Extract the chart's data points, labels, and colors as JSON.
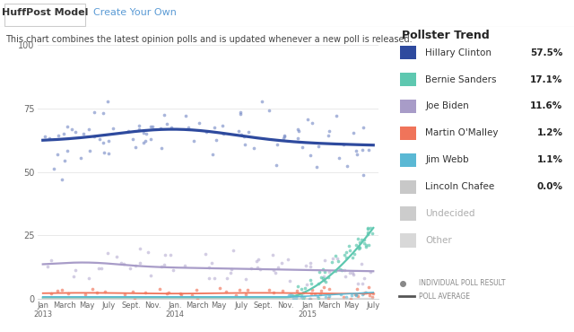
{
  "title_tab1": "HuffPost Model",
  "title_tab2": "Create Your Own",
  "subtitle": "This chart combines the latest opinion polls and is updated whenever a new poll is released.",
  "legend_title": "Pollster Trend",
  "candidates": [
    {
      "name": "Hillary Clinton",
      "pct": "57.5%",
      "color": "#2e4a9e",
      "dot_color": "#7b8fc8",
      "line_color": "#2e4a9e"
    },
    {
      "name": "Bernie Sanders",
      "pct": "17.1%",
      "color": "#5ec8b0",
      "dot_color": "#5ec8b0",
      "line_color": "#5ec8b0"
    },
    {
      "name": "Joe Biden",
      "pct": "11.6%",
      "color": "#a89cc8",
      "dot_color": "#a89cc8",
      "line_color": "#a89cc8"
    },
    {
      "name": "Martin O'Malley",
      "pct": "1.2%",
      "color": "#f0745a",
      "dot_color": "#f0745a",
      "line_color": "#f0745a"
    },
    {
      "name": "Jim Webb",
      "pct": "1.1%",
      "color": "#5ab8d4",
      "dot_color": "#5ab8d4",
      "line_color": "#5ab8d4"
    },
    {
      "name": "Lincoln Chafee",
      "pct": "0.0%",
      "color": "#c8c8c8",
      "dot_color": "#c8c8c8",
      "line_color": "#c8c8c8"
    },
    {
      "name": "Undecided",
      "pct": null,
      "color": "#cccccc",
      "dot_color": "#cccccc",
      "line_color": "#cccccc"
    },
    {
      "name": "Other",
      "pct": null,
      "color": "#d8d8d8",
      "dot_color": "#d8d8d8",
      "line_color": "#d8d8d8"
    }
  ],
  "x_tick_labels": [
    "Jan\n2013",
    "March",
    "May",
    "July",
    "Sept.",
    "Nov.",
    "Jan.\n2014",
    "March",
    "May",
    "July",
    "Sept.",
    "Nov.",
    "Jan\n2015",
    "March",
    "May",
    "July"
  ],
  "x_tick_positions": [
    0,
    2,
    4,
    6,
    8,
    10,
    12,
    14,
    16,
    18,
    20,
    22,
    24,
    26,
    28,
    30
  ],
  "ylim": [
    0,
    100
  ],
  "yticks": [
    0,
    25,
    50,
    75,
    100
  ],
  "bg_color": "#ffffff",
  "plot_bg": "#ffffff",
  "legend_bg": "#eeeeee",
  "tab_bg": "#ffffff",
  "tab_border": "#cccccc"
}
